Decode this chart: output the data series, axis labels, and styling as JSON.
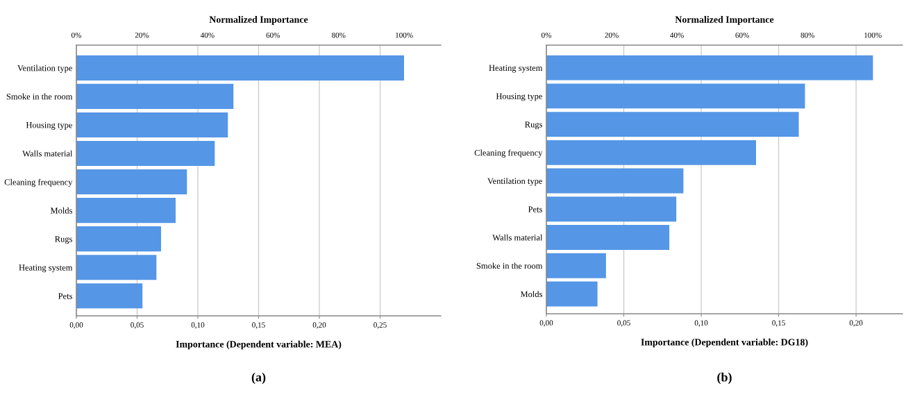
{
  "chart_data": [
    {
      "type": "bar",
      "orientation": "horizontal",
      "color": "#5596e6",
      "grid": "x",
      "legend": false,
      "categories": [
        "Ventilation type",
        "Smoke in the room",
        "Housing type",
        "Walls material",
        "Cleaning frequency",
        "Molds",
        "Rugs",
        "Heating system",
        "Pets"
      ],
      "values": [
        0.2697,
        0.1293,
        0.1247,
        0.1139,
        0.091,
        0.0817,
        0.0697,
        0.0659,
        0.0544
      ],
      "xlim": [
        0,
        0.3
      ],
      "xticks": [
        {
          "value": 0,
          "label": "0,00"
        },
        {
          "value": 0.05,
          "label": "0,05"
        },
        {
          "value": 0.1,
          "label": "0,10"
        },
        {
          "value": 0.15,
          "label": "0,15"
        },
        {
          "value": 0.2,
          "label": "0,20"
        },
        {
          "value": 0.25,
          "label": "0,25"
        }
      ],
      "xlabel": "Importance (Dependent variable: MEA)",
      "x2label": "Normalized Importance",
      "x2lim": [
        0,
        111.2
      ],
      "x2ticks": [
        {
          "value": 0,
          "label": "0%"
        },
        {
          "value": 20,
          "label": "20%"
        },
        {
          "value": 40,
          "label": "40%"
        },
        {
          "value": 60,
          "label": "60%"
        },
        {
          "value": 80,
          "label": "80%"
        },
        {
          "value": 100,
          "label": "100%"
        }
      ],
      "annotations": [
        "(a)"
      ]
    },
    {
      "type": "bar",
      "orientation": "horizontal",
      "color": "#5596e6",
      "grid": "x",
      "legend": false,
      "categories": [
        "Heating system",
        "Housing type",
        "Rugs",
        "Cleaning frequency",
        "Ventilation type",
        "Pets",
        "Walls material",
        "Smoke in the room",
        "Molds"
      ],
      "values": [
        0.2109,
        0.167,
        0.163,
        0.1354,
        0.0885,
        0.0839,
        0.0794,
        0.0385,
        0.033
      ],
      "xlim": [
        0,
        0.23
      ],
      "xticks": [
        {
          "value": 0,
          "label": "0,00"
        },
        {
          "value": 0.05,
          "label": "0,05"
        },
        {
          "value": 0.1,
          "label": "0,10"
        },
        {
          "value": 0.15,
          "label": "0,15"
        },
        {
          "value": 0.2,
          "label": "0,20"
        }
      ],
      "xlabel": "Importance (Dependent variable: DG18)",
      "x2label": "Normalized Importance",
      "x2lim": [
        0,
        109.1
      ],
      "x2ticks": [
        {
          "value": 0,
          "label": "0%"
        },
        {
          "value": 20,
          "label": "20%"
        },
        {
          "value": 40,
          "label": "40%"
        },
        {
          "value": 60,
          "label": "60%"
        },
        {
          "value": 80,
          "label": "80%"
        },
        {
          "value": 100,
          "label": "100%"
        }
      ],
      "annotations": [
        "(b)"
      ]
    }
  ]
}
